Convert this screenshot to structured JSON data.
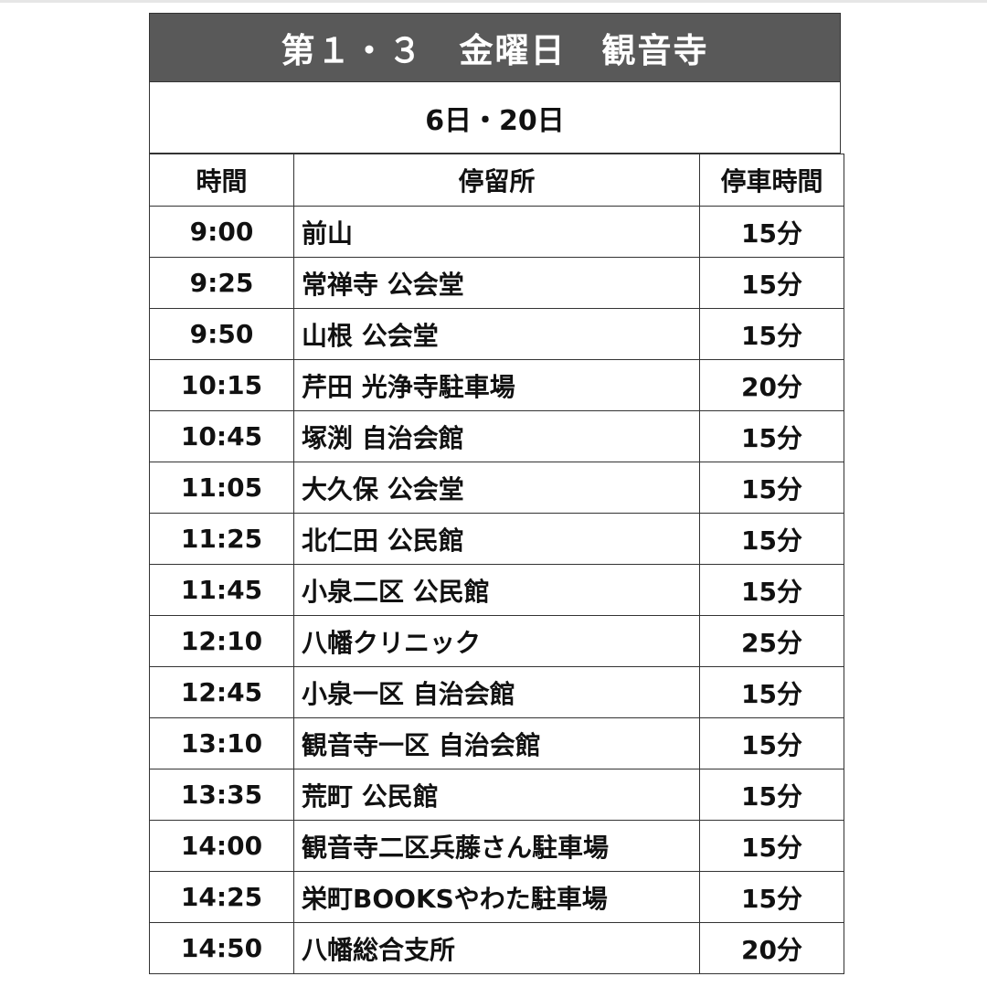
{
  "title": "第１・３　金曜日　観音寺",
  "dates": "6日・20日",
  "header": {
    "time": "時間",
    "stop": "停留所",
    "duration": "停車時間"
  },
  "colors": {
    "title_bg": "#595959",
    "title_text": "#ffffff",
    "border": "#333333"
  },
  "rows": [
    {
      "time": "9:00",
      "stop": "前山",
      "duration": "15分"
    },
    {
      "time": "9:25",
      "stop": "常禅寺 公会堂",
      "duration": "15分"
    },
    {
      "time": "9:50",
      "stop": "山根 公会堂",
      "duration": "15分"
    },
    {
      "time": "10:15",
      "stop": "芹田 光浄寺駐車場",
      "duration": "20分"
    },
    {
      "time": "10:45",
      "stop": "塚渕 自治会館",
      "duration": "15分"
    },
    {
      "time": "11:05",
      "stop": "大久保 公会堂",
      "duration": "15分"
    },
    {
      "time": "11:25",
      "stop": "北仁田 公民館",
      "duration": "15分"
    },
    {
      "time": "11:45",
      "stop": "小泉二区 公民館",
      "duration": "15分"
    },
    {
      "time": "12:10",
      "stop": "八幡クリニック",
      "duration": "25分"
    },
    {
      "time": "12:45",
      "stop": "小泉一区 自治会館",
      "duration": "15分"
    },
    {
      "time": "13:10",
      "stop": "観音寺一区 自治会館",
      "duration": "15分"
    },
    {
      "time": "13:35",
      "stop": "荒町 公民館",
      "duration": "15分"
    },
    {
      "time": "14:00",
      "stop": "観音寺二区兵藤さん駐車場",
      "duration": "15分"
    },
    {
      "time": "14:25",
      "stop": "栄町BOOKSやわた駐車場",
      "duration": "15分"
    },
    {
      "time": "14:50",
      "stop": "八幡総合支所",
      "duration": "20分"
    }
  ]
}
